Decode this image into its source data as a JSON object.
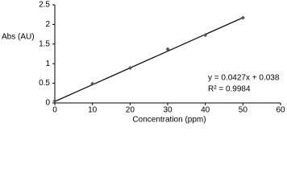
{
  "chart_data": {
    "type": "scatter",
    "x_label": "Concentration (ppm)",
    "y_label": "Abs (AU)",
    "x": [
      0,
      10,
      20,
      30,
      40,
      50
    ],
    "values": [
      0.05,
      0.49,
      0.89,
      1.37,
      1.73,
      2.17
    ],
    "color": "#555555",
    "trendline": {
      "x": [
        0,
        50
      ],
      "values": [
        0.038,
        2.173
      ],
      "color": "#000000",
      "equation": "y = 0.0427x + 0.038",
      "r_squared": "R² = 0.9984"
    },
    "xlim": [
      0,
      60
    ],
    "xticks": [
      0,
      10,
      20,
      30,
      40,
      50,
      60
    ],
    "ylim": [
      0,
      2.5
    ],
    "yticks": [
      0,
      0.5,
      1,
      1.5,
      2,
      2.5
    ]
  }
}
